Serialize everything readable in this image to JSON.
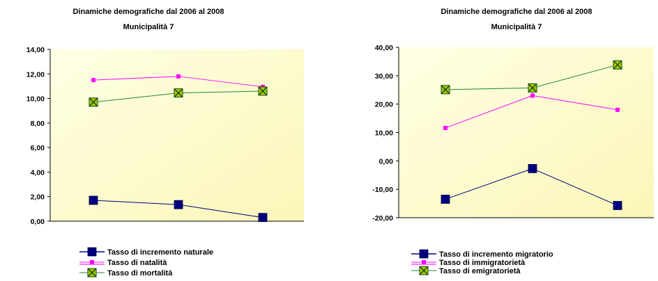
{
  "colors": {
    "navy": "#00007f",
    "magenta": "#ff00ff",
    "green": "#1e8a3c",
    "green_fill": "#b0c800",
    "plot_bg_top": "#ffffe5",
    "plot_bg_bottom": "#fbf6b8"
  },
  "chart_data": [
    {
      "type": "line",
      "title": "Dinamiche demografiche dal 2006 al 2008",
      "subtitle": "Municipalità 7",
      "categories": [
        "",
        "",
        ""
      ],
      "ylim": [
        0,
        14
      ],
      "yticks": [
        "0,00",
        "2,00",
        "4,00",
        "6,00",
        "8,00",
        "10,00",
        "12,00",
        "14,00"
      ],
      "grid": false,
      "legend_position": "bottom-left",
      "series": [
        {
          "name": "Tasso di incremento naturale",
          "values": [
            1.7,
            1.35,
            0.3
          ],
          "marker": "square",
          "color_key": "navy"
        },
        {
          "name": "Tasso di natalità",
          "values": [
            11.5,
            11.8,
            10.95
          ],
          "marker": "small-square",
          "color_key": "magenta"
        },
        {
          "name": "Tasso di mortalità",
          "values": [
            9.7,
            10.45,
            10.6
          ],
          "marker": "x-box",
          "color_key": "green"
        }
      ]
    },
    {
      "type": "line",
      "title": "Dinamiche demografiche dal 2006 al 2008",
      "subtitle": "Municipalità 7",
      "categories": [
        "",
        "",
        ""
      ],
      "ylim": [
        -20,
        40
      ],
      "yticks": [
        "-20,00",
        "-10,00",
        "0,00",
        "10,00",
        "20,00",
        "30,00",
        "40,00"
      ],
      "grid": false,
      "legend_position": "bottom-left",
      "series": [
        {
          "name": "Tasso di incremento migratorio",
          "values": [
            -13.5,
            -2.7,
            -15.7
          ],
          "marker": "square",
          "color_key": "navy"
        },
        {
          "name": "Tasso di immigratorietà",
          "values": [
            11.6,
            23.0,
            18.0
          ],
          "marker": "small-square",
          "color_key": "magenta"
        },
        {
          "name": "Tasso di emigratorietà",
          "values": [
            25.1,
            25.7,
            33.8
          ],
          "marker": "x-box",
          "color_key": "green"
        }
      ]
    }
  ]
}
